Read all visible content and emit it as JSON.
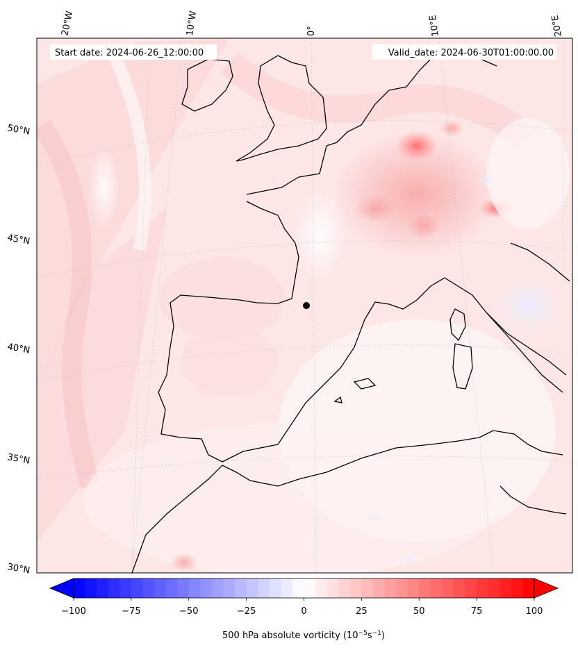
{
  "annotations": {
    "start_date": "Start date: 2024-06-26_12:00:00",
    "valid_date": "Valid_date: 2024-06-30T01:00:00.00"
  },
  "map": {
    "type": "contour-map",
    "projection": "conic",
    "field_colors": {
      "land_tint": "#fde3e3",
      "sea_tint": "#fdf2f2",
      "coast": "#000000"
    },
    "lon_labels": [
      "20°W",
      "10°W",
      "0°",
      "10°E",
      "20°E"
    ],
    "lat_labels": [
      "50°N",
      "45°N",
      "40°N",
      "35°N",
      "30°N"
    ],
    "gridlines": true
  },
  "colorbar": {
    "label": "500 hPa absolute vorticity (10$^{-5}$s$^{-1}$)",
    "label_text": "500 hPa absolute vorticity (10",
    "label_sup1": "−5",
    "label_mid": "s",
    "label_sup2": "−1",
    "label_end": ")",
    "ticks": [
      "−100",
      "−75",
      "−50",
      "−25",
      "0",
      "25",
      "50",
      "75",
      "100"
    ],
    "vmin": -100,
    "vmax": 100,
    "colors": {
      "low": "#0000ff",
      "mid": "#ffffff",
      "high": "#ff0000"
    },
    "extend": "both"
  },
  "chart_data": {
    "type": "heatmap",
    "title": "",
    "xlabel": "",
    "ylabel": "",
    "x_ticks": [
      "20°W",
      "10°W",
      "0°",
      "10°E",
      "20°E"
    ],
    "y_ticks": [
      "50°N",
      "45°N",
      "40°N",
      "35°N",
      "30°N"
    ],
    "colorbar_range": [
      -100,
      100
    ],
    "colorbar_ticks": [
      -100,
      -75,
      -50,
      -25,
      0,
      25,
      50,
      75,
      100
    ]
  }
}
